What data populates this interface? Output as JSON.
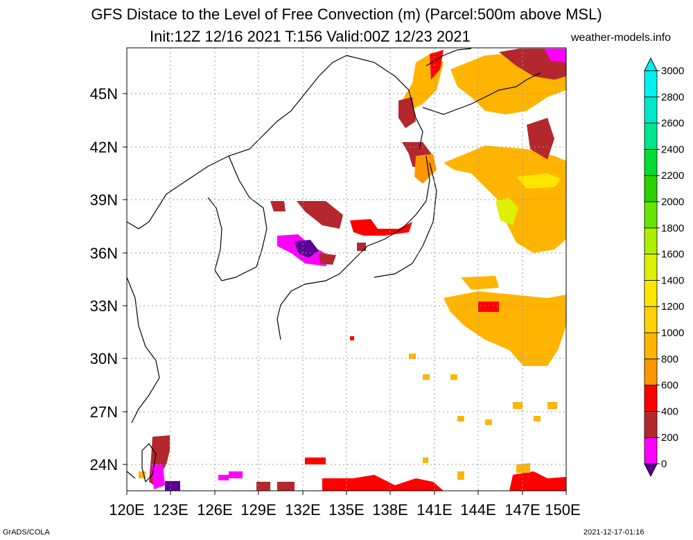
{
  "title": {
    "line1": "GFS Distace to the Level of Free Convection (m) (Parcel:500m above MSL)",
    "line2": "Init:12Z 12/16 2021 T:156 Valid:00Z 12/23 2021",
    "site": "weather-models.info"
  },
  "footer": {
    "left": "GrADS/COLA",
    "right": "2021-12-17-01:16"
  },
  "map": {
    "lon_range": [
      120,
      150
    ],
    "lat_range": [
      22.5,
      47.5
    ],
    "lat_ticks": [
      "24N",
      "27N",
      "30N",
      "33N",
      "36N",
      "39N",
      "42N",
      "45N"
    ],
    "lon_ticks": [
      "120E",
      "123E",
      "126E",
      "129E",
      "132E",
      "135E",
      "138E",
      "141E",
      "144E",
      "147E",
      "150E"
    ],
    "grid": "dotted"
  },
  "colorbar": {
    "labels": [
      "0",
      "200",
      "400",
      "600",
      "800",
      "1000",
      "1200",
      "1400",
      "1600",
      "1800",
      "2000",
      "2200",
      "2400",
      "2600",
      "2800",
      "3000"
    ],
    "colors": [
      "#5a0096",
      "#ff00ff",
      "#b4282d",
      "#ff0000",
      "#ff9600",
      "#ffb400",
      "#ffd200",
      "#ffe600",
      "#dcf000",
      "#aaf000",
      "#64e600",
      "#28d200",
      "#00dc32",
      "#00e68c",
      "#00e6c8",
      "#00f0f0"
    ]
  }
}
